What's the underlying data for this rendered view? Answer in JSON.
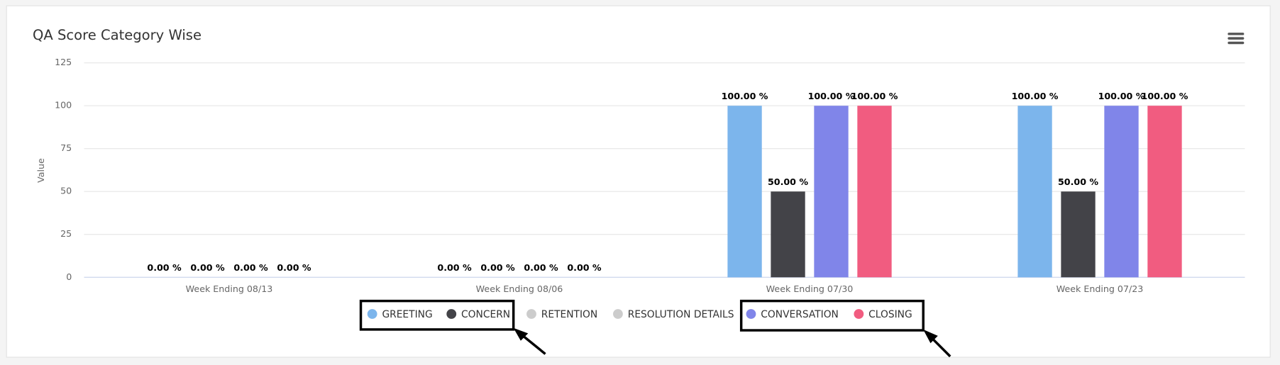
{
  "chart_data": {
    "type": "bar",
    "title": "QA Score Category Wise",
    "y_label": "Value",
    "categories": [
      "Week Ending 08/13",
      "Week Ending 08/06",
      "Week Ending 07/30",
      "Week Ending 07/23"
    ],
    "ylim": [
      0,
      125
    ],
    "yticks": [
      0,
      25,
      50,
      75,
      100,
      125
    ],
    "grid": true,
    "legend": "bottom",
    "series": [
      {
        "name": "GREETING",
        "color": "#7cb5ec",
        "values": [
          0,
          0,
          100,
          100
        ],
        "value_labels": [
          "0.00 %",
          "0.00 %",
          "100.00 %",
          "100.00 %"
        ]
      },
      {
        "name": "CONCERN",
        "color": "#434348",
        "values": [
          0,
          0,
          50,
          50
        ],
        "value_labels": [
          "0.00 %",
          "0.00 %",
          "50.00 %",
          "50.00 %"
        ]
      },
      {
        "name": "RETENTION",
        "color": "#90ed7d",
        "hidden": true,
        "values": [
          null,
          null,
          null,
          null
        ]
      },
      {
        "name": "RESOLUTION DETAILS",
        "color": "#f7a35c",
        "hidden": true,
        "values": [
          null,
          null,
          null,
          null
        ]
      },
      {
        "name": "CONVERSATION",
        "color": "#8085e9",
        "values": [
          0,
          0,
          100,
          100
        ],
        "value_labels": [
          "0.00 %",
          "0.00 %",
          "100.00 %",
          "100.00 %"
        ]
      },
      {
        "name": "CLOSING",
        "color": "#f15c80",
        "values": [
          0,
          0,
          100,
          100
        ],
        "value_labels": [
          "0.00 %",
          "0.00 %",
          "100.00 %",
          "100.00 %"
        ]
      }
    ]
  }
}
